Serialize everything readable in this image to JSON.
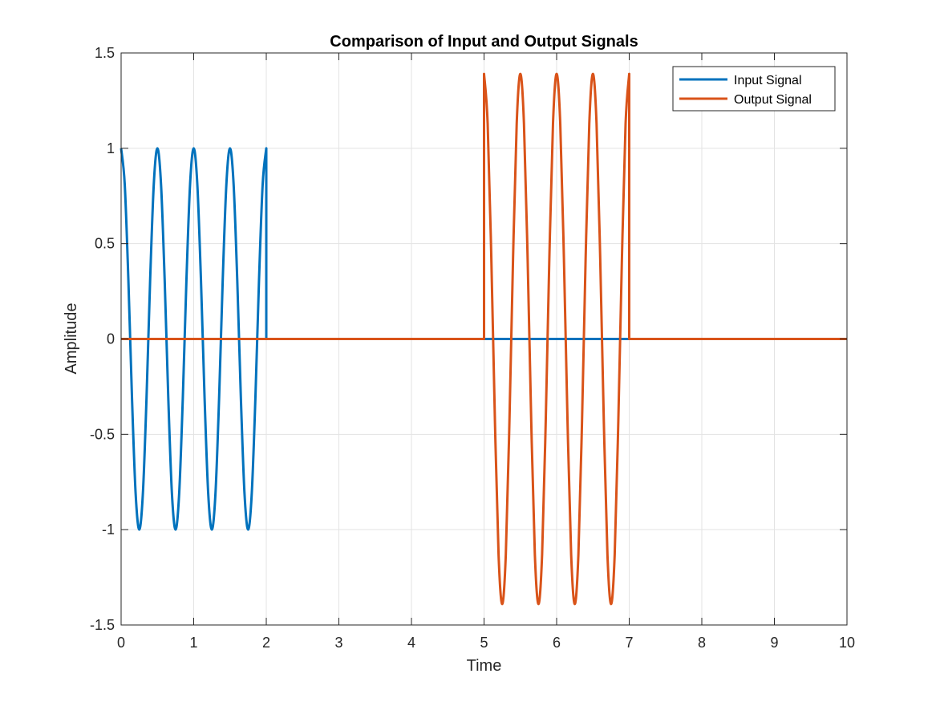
{
  "chart_data": {
    "type": "line",
    "title": "Comparison of Input and Output Signals",
    "xlabel": "Time",
    "ylabel": "Amplitude",
    "xlim": [
      0,
      10
    ],
    "ylim": [
      -1.5,
      1.5
    ],
    "grid": true,
    "legend_position": "top-right",
    "x_ticks": [
      "0",
      "1",
      "2",
      "3",
      "4",
      "5",
      "6",
      "7",
      "8",
      "9",
      "10"
    ],
    "y_ticks": [
      "-1.5",
      "-1",
      "-0.5",
      "0",
      "0.5",
      "1",
      "1.5"
    ],
    "series": [
      {
        "name": "Input Signal",
        "color": "#0072BD",
        "x": [
          0,
          0.05,
          0.1,
          0.15,
          0.2,
          0.25,
          0.3,
          0.35,
          0.4,
          0.45,
          0.5,
          0.55,
          0.6,
          0.65,
          0.7,
          0.75,
          0.8,
          0.85,
          0.9,
          0.95,
          1.0,
          1.05,
          1.1,
          1.15,
          1.2,
          1.25,
          1.3,
          1.35,
          1.4,
          1.45,
          1.5,
          1.55,
          1.6,
          1.65,
          1.7,
          1.75,
          1.8,
          1.85,
          1.9,
          1.95,
          2.0,
          2.0,
          10.0
        ],
        "y": [
          1.0,
          0.81,
          0.31,
          -0.31,
          -0.81,
          -1.0,
          -0.81,
          -0.31,
          0.31,
          0.81,
          1.0,
          0.81,
          0.31,
          -0.31,
          -0.81,
          -1.0,
          -0.81,
          -0.31,
          0.31,
          0.81,
          1.0,
          0.81,
          0.31,
          -0.31,
          -0.81,
          -1.0,
          -0.81,
          -0.31,
          0.31,
          0.81,
          1.0,
          0.81,
          0.31,
          -0.31,
          -0.81,
          -1.0,
          -0.81,
          -0.31,
          0.31,
          0.81,
          1.0,
          0.0,
          0.0
        ]
      },
      {
        "name": "Output Signal",
        "color": "#D95319",
        "x": [
          0,
          5.0,
          5.0,
          5.05,
          5.1,
          5.15,
          5.2,
          5.25,
          5.3,
          5.35,
          5.4,
          5.45,
          5.5,
          5.55,
          5.6,
          5.65,
          5.7,
          5.75,
          5.8,
          5.85,
          5.9,
          5.95,
          6.0,
          6.05,
          6.1,
          6.15,
          6.2,
          6.25,
          6.3,
          6.35,
          6.4,
          6.45,
          6.5,
          6.55,
          6.6,
          6.65,
          6.7,
          6.75,
          6.8,
          6.85,
          6.9,
          6.95,
          7.0,
          7.0,
          10.0
        ],
        "y": [
          0.0,
          0.0,
          1.39,
          1.13,
          0.43,
          -0.43,
          -1.13,
          -1.39,
          -1.13,
          -0.43,
          0.43,
          1.13,
          1.39,
          1.13,
          0.43,
          -0.43,
          -1.13,
          -1.39,
          -1.13,
          -0.43,
          0.43,
          1.13,
          1.39,
          1.13,
          0.43,
          -0.43,
          -1.13,
          -1.39,
          -1.13,
          -0.43,
          0.43,
          1.13,
          1.39,
          1.13,
          0.43,
          -0.43,
          -1.13,
          -1.39,
          -1.13,
          -0.43,
          0.43,
          1.13,
          1.39,
          0.0,
          0.0
        ]
      }
    ]
  }
}
